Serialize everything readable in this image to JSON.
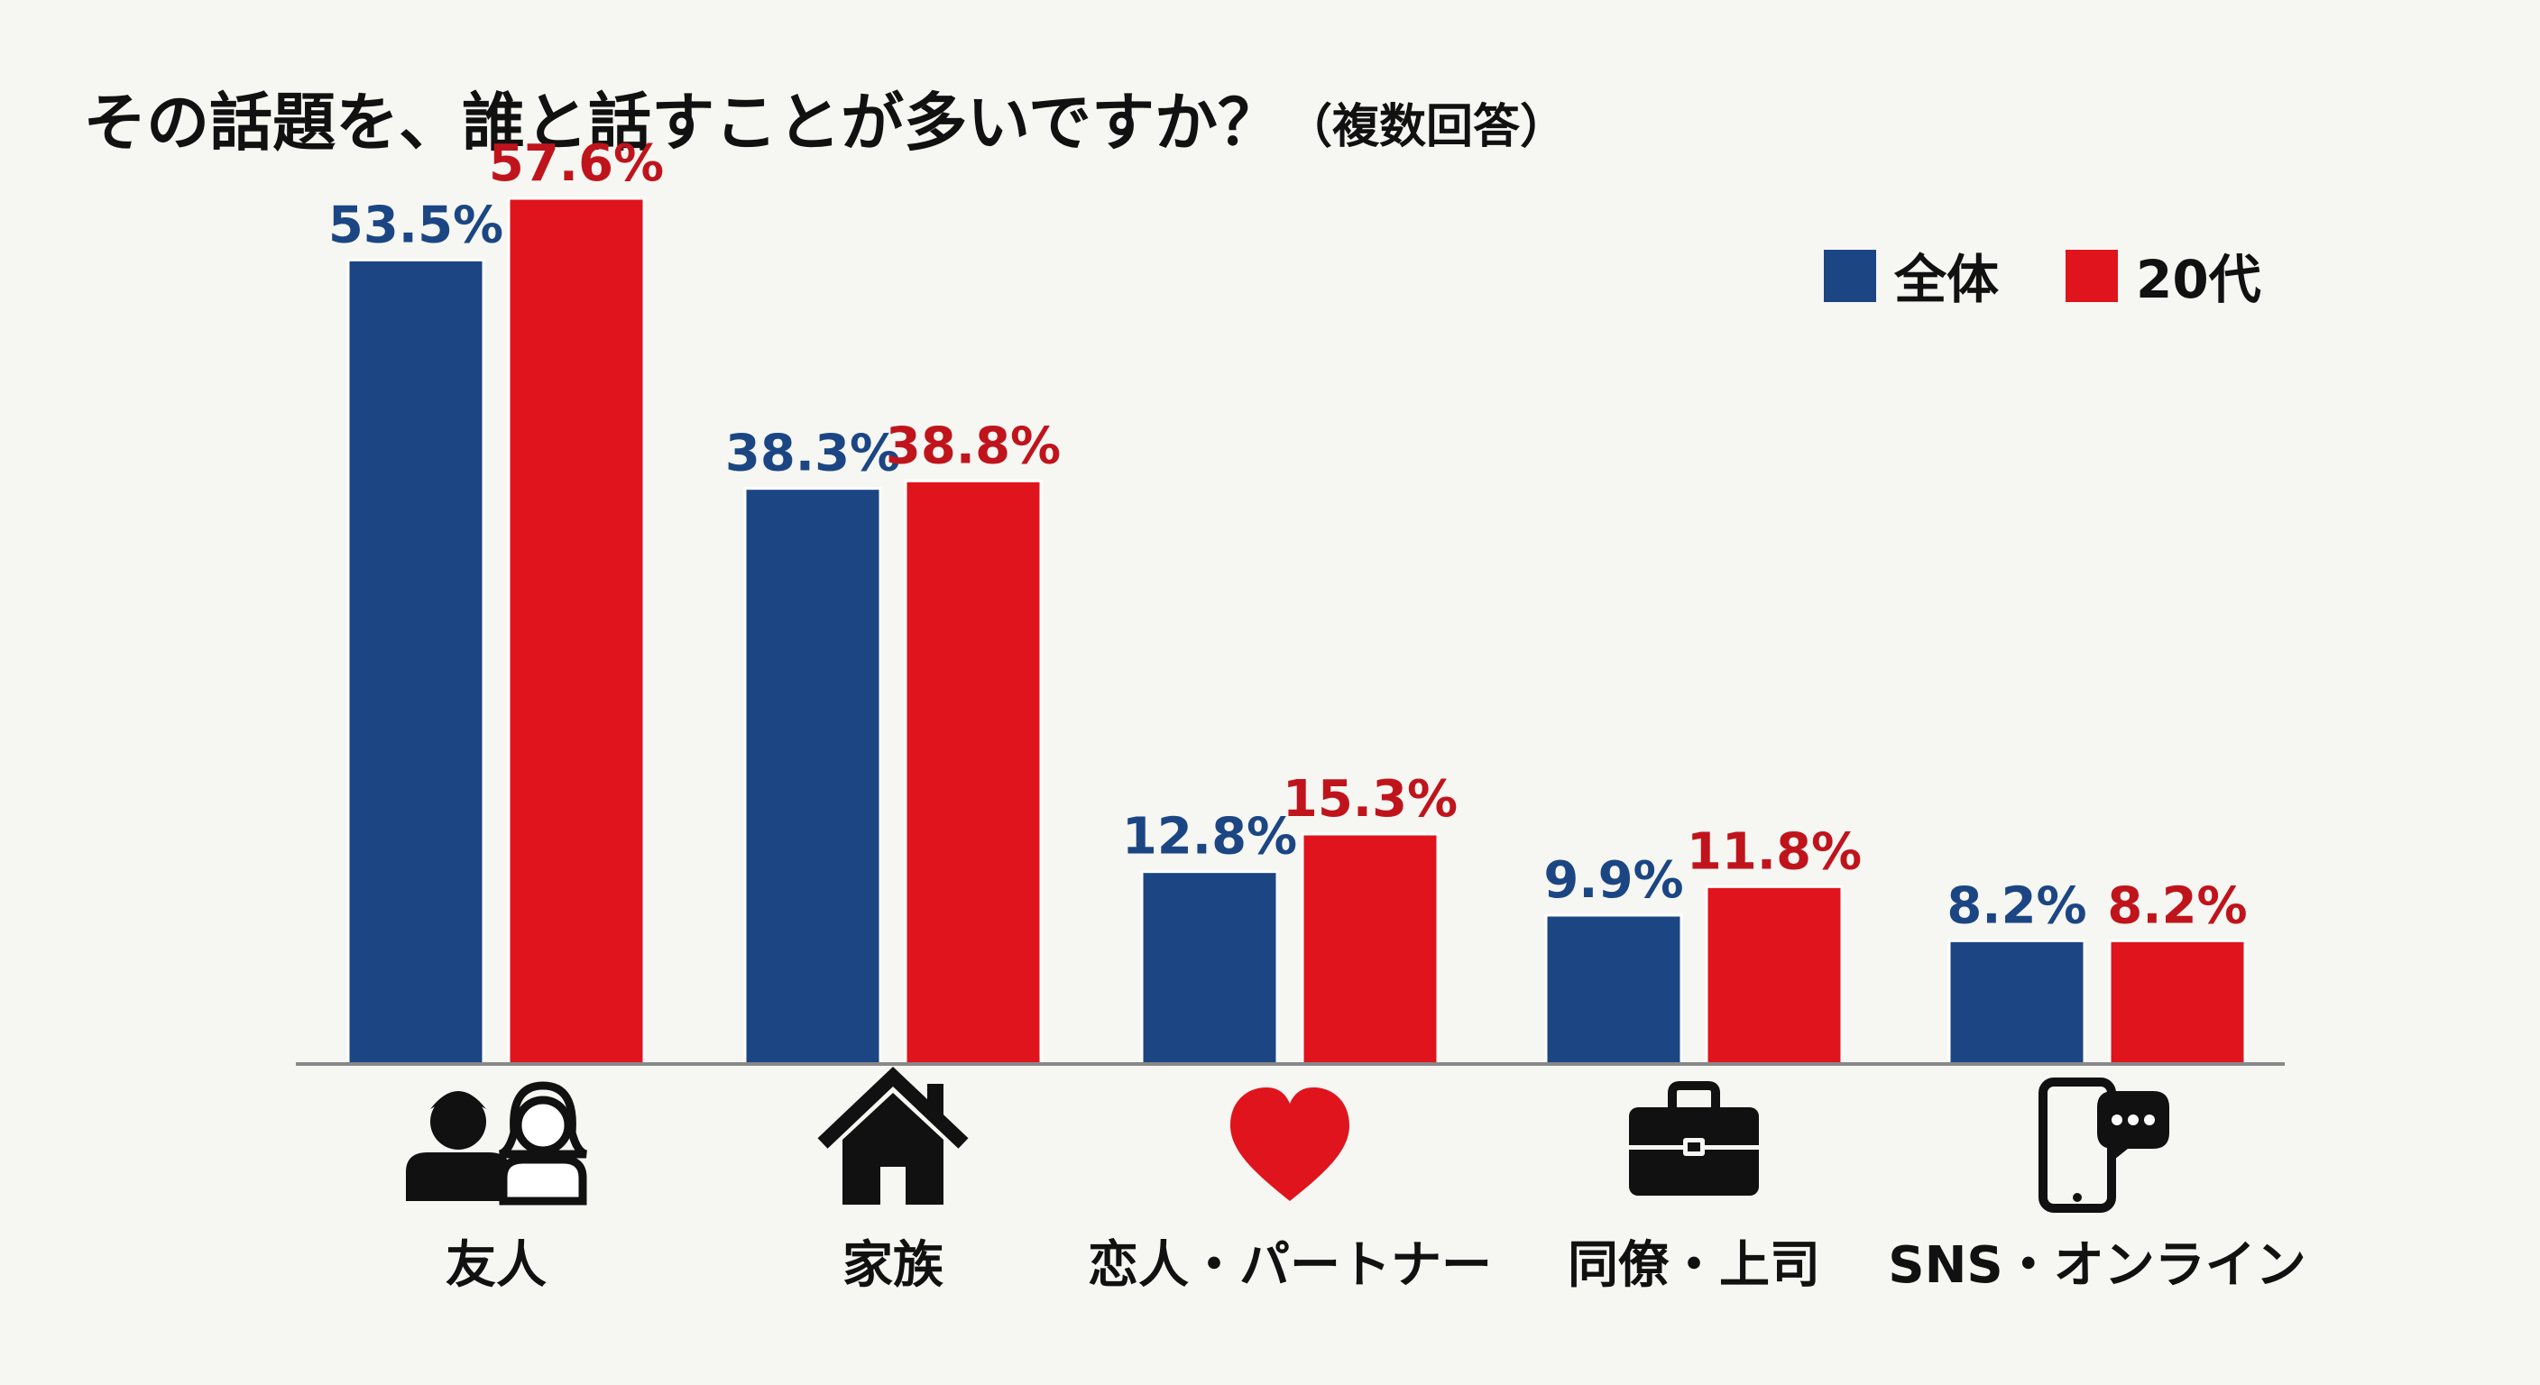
{
  "chart_data": {
    "type": "bar",
    "title": "その話題を、誰と話すことが多いですか？",
    "subtitle": "（複数回答）",
    "xlabel": "",
    "ylabel": "",
    "ylim": [
      0,
      60
    ],
    "grid": false,
    "legend_position": "top-right",
    "categories": [
      "友人",
      "家族",
      "恋人・パートナー",
      "同僚・上司",
      "SNS・オンライン"
    ],
    "category_icons": [
      "people-icon",
      "house-icon",
      "heart-icon",
      "briefcase-icon",
      "smartphone-chat-icon"
    ],
    "series": [
      {
        "name": "全体",
        "values": [
          53.5,
          38.3,
          12.8,
          9.9,
          8.2
        ],
        "labels": [
          "53.5%",
          "38.3%",
          "12.8%",
          "9.9%",
          "8.2%"
        ]
      },
      {
        "name": "20代",
        "values": [
          57.6,
          38.8,
          15.3,
          11.8,
          8.2
        ],
        "labels": [
          "57.6%",
          "38.8%",
          "15.3%",
          "11.8%",
          "8.2%"
        ]
      }
    ]
  },
  "colors": {
    "series_fill": [
      "#1b4683",
      "#e0141c"
    ],
    "label_text": [
      "#1b4683",
      "#c0141c"
    ],
    "axis": "#888888",
    "icon": "#111111",
    "heart": "#e0141c"
  }
}
